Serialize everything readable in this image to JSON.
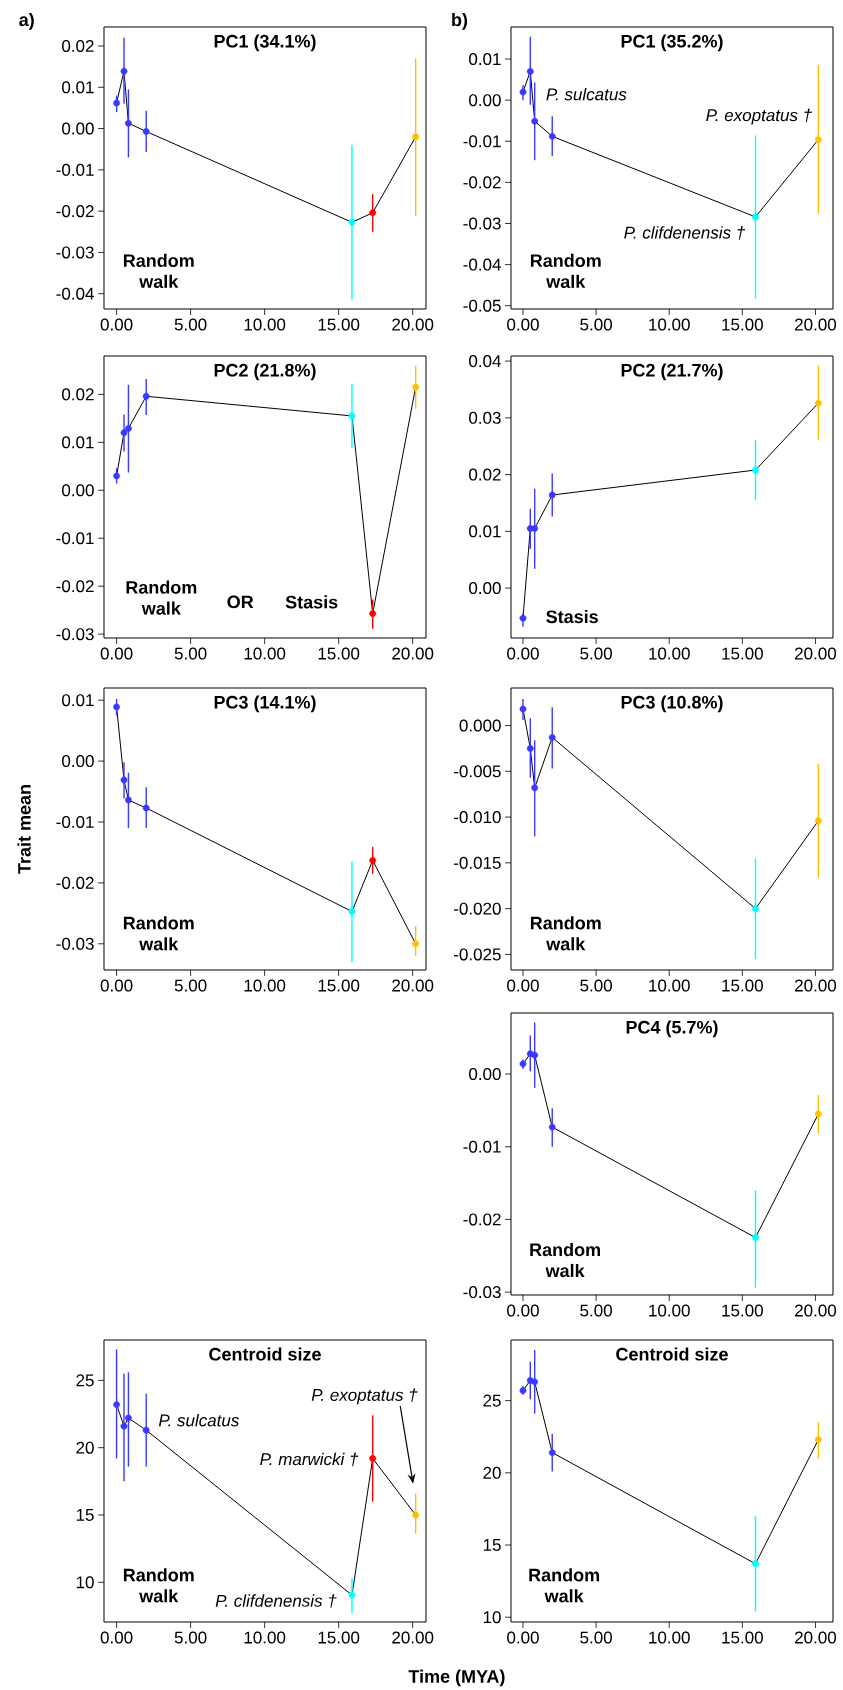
{
  "chart_data": [
    {
      "type": "line",
      "title": "PC1 (34.1%)",
      "x": [
        0,
        0.5,
        0.8,
        2.0,
        15.9,
        17.3,
        20.2
      ],
      "values": [
        0.0062,
        0.0139,
        0.0013,
        -0.0007,
        -0.0227,
        -0.0204,
        -0.002
      ],
      "errors": [
        [
          0.004,
          0.008
        ],
        [
          0.006,
          0.022
        ],
        [
          -0.007,
          0.0095
        ],
        [
          -0.0057,
          0.0043
        ],
        [
          -0.0414,
          -0.0039
        ],
        [
          -0.025,
          -0.0159
        ],
        [
          -0.0212,
          0.017
        ]
      ],
      "color": "#000000",
      "colors": [
        "#3a3aff",
        "#3a3aff",
        "#3a3aff",
        "#3a3aff",
        "#00ffff",
        "#ff0000",
        "#ffc000"
      ],
      "marker": "circle",
      "xlim": [
        -0.85,
        20.9
      ],
      "ylim": [
        -0.0437,
        0.0246
      ],
      "xticks": [
        {
          "value": 0,
          "label": "0.00"
        },
        {
          "value": 5,
          "label": "5.00"
        },
        {
          "value": 10,
          "label": "10.00"
        },
        {
          "value": 15,
          "label": "15.00"
        },
        {
          "value": 20,
          "label": "20.00"
        }
      ],
      "yticks": [
        -0.04,
        -0.03,
        -0.02,
        -0.01,
        {
          "value": 0,
          "label": "0.00"
        },
        0.01,
        0.02
      ],
      "annotations": [
        "a)",
        "Random walk"
      ]
    },
    {
      "type": "line",
      "title": "PC1 (35.2%)",
      "x": [
        0,
        0.5,
        0.8,
        2.0,
        15.9,
        20.2
      ],
      "values": [
        0.002,
        0.007,
        -0.0051,
        -0.0088,
        -0.0284,
        -0.0096
      ],
      "errors": [
        [
          0.0,
          0.0037
        ],
        [
          -0.0011,
          0.0154
        ],
        [
          -0.0146,
          0.0043
        ],
        [
          -0.0136,
          -0.0039
        ],
        [
          -0.0483,
          -0.0086
        ],
        [
          -0.0277,
          0.0085
        ]
      ],
      "color": "#000000",
      "colors": [
        "#3a3aff",
        "#3a3aff",
        "#3a3aff",
        "#3a3aff",
        "#00ffff",
        "#ffc000"
      ],
      "marker": "circle",
      "xlim": [
        -0.82,
        21.2
      ],
      "ylim": [
        -0.0508,
        0.0178
      ],
      "xticks": [
        {
          "value": 0,
          "label": "0.00"
        },
        {
          "value": 5,
          "label": "5.00"
        },
        {
          "value": 10,
          "label": "10.00"
        },
        {
          "value": 15,
          "label": "15.00"
        },
        {
          "value": 20,
          "label": "20.00"
        }
      ],
      "yticks": [
        -0.05,
        -0.04,
        -0.03,
        -0.02,
        -0.01,
        {
          "value": 0,
          "label": "0.00"
        },
        0.01
      ],
      "annotations": [
        "b)",
        {
          "text": "P. sulcatus",
          "x": 0.8,
          "y": -0.0051
        },
        {
          "text": "P. exoptatus †",
          "x": 20.2,
          "y": -0.0096
        },
        {
          "text": "P. clifdenensis †",
          "x": 15.9,
          "y": -0.0284
        },
        "Random walk"
      ]
    },
    {
      "type": "line",
      "title": "PC2 (21.8%)",
      "x": [
        0,
        0.5,
        0.8,
        2.0,
        15.9,
        17.3,
        20.2
      ],
      "values": [
        0.003,
        0.012,
        0.0129,
        0.0196,
        0.0155,
        -0.0257,
        0.0215
      ],
      "errors": [
        [
          0.0014,
          0.0046
        ],
        [
          0.0081,
          0.0158
        ],
        [
          0.0037,
          0.022
        ],
        [
          0.0157,
          0.0232
        ],
        [
          0.0088,
          0.0222
        ],
        [
          -0.0289,
          -0.0228
        ],
        [
          0.017,
          0.026
        ]
      ],
      "color": "#000000",
      "colors": [
        "#3a3aff",
        "#3a3aff",
        "#3a3aff",
        "#3a3aff",
        "#00ffff",
        "#ff0000",
        "#ffc000"
      ],
      "marker": "circle",
      "xlim": [
        -0.85,
        20.9
      ],
      "ylim": [
        -0.0308,
        0.028
      ],
      "xticks": [
        {
          "value": 0,
          "label": "0.00"
        },
        {
          "value": 5,
          "label": "5.00"
        },
        {
          "value": 10,
          "label": "10.00"
        },
        {
          "value": 15,
          "label": "15.00"
        },
        {
          "value": 20,
          "label": "20.00"
        }
      ],
      "yticks": [
        -0.03,
        -0.02,
        -0.01,
        {
          "value": 0,
          "label": "0.00"
        },
        0.01,
        0.02
      ],
      "annotations": [
        "Random walk",
        "OR",
        "Stasis"
      ]
    },
    {
      "type": "line",
      "title": "PC2 (21.7%)",
      "x": [
        0,
        0.5,
        0.8,
        2.0,
        15.9,
        20.2
      ],
      "values": [
        -0.0053,
        0.0105,
        0.0105,
        0.0164,
        0.0208,
        0.0326
      ],
      "errors": [
        [
          -0.0068,
          -0.0044
        ],
        [
          0.0069,
          0.014
        ],
        [
          0.0034,
          0.0175
        ],
        [
          0.0126,
          0.0202
        ],
        [
          0.0155,
          0.0261
        ],
        [
          0.0261,
          0.0392
        ]
      ],
      "color": "#000000",
      "colors": [
        "#3a3aff",
        "#3a3aff",
        "#3a3aff",
        "#3a3aff",
        "#00ffff",
        "#ffc000"
      ],
      "marker": "circle",
      "xlim": [
        -0.82,
        21.2
      ],
      "ylim": [
        -0.0088,
        0.0409
      ],
      "xticks": [
        {
          "value": 0,
          "label": "0.00"
        },
        {
          "value": 5,
          "label": "5.00"
        },
        {
          "value": 10,
          "label": "10.00"
        },
        {
          "value": 15,
          "label": "15.00"
        },
        {
          "value": 20,
          "label": "20.00"
        }
      ],
      "yticks": [
        {
          "value": 0,
          "label": "0.00"
        },
        0.01,
        0.02,
        0.03,
        0.04
      ],
      "annotations": [
        "Stasis"
      ]
    },
    {
      "type": "line",
      "title": "PC3 (14.1%)",
      "ylabel": "Trait mean",
      "x": [
        0,
        0.5,
        0.8,
        2.0,
        15.9,
        17.3,
        20.2
      ],
      "values": [
        0.0089,
        -0.0031,
        -0.0064,
        -0.0077,
        -0.0247,
        -0.0163,
        -0.03
      ],
      "errors": [
        [
          0.0075,
          0.0102
        ],
        [
          -0.0061,
          -0.0002
        ],
        [
          -0.011,
          -0.0019
        ],
        [
          -0.011,
          -0.0043
        ],
        [
          -0.033,
          -0.0165
        ],
        [
          -0.0185,
          -0.0141
        ],
        [
          -0.032,
          -0.0271
        ]
      ],
      "color": "#000000",
      "colors": [
        "#3a3aff",
        "#3a3aff",
        "#3a3aff",
        "#3a3aff",
        "#00ffff",
        "#ff0000",
        "#ffc000"
      ],
      "marker": "circle",
      "xlim": [
        -0.85,
        20.9
      ],
      "ylim": [
        -0.0343,
        0.012
      ],
      "xticks": [
        {
          "value": 0,
          "label": "0.00"
        },
        {
          "value": 5,
          "label": "5.00"
        },
        {
          "value": 10,
          "label": "10.00"
        },
        {
          "value": 15,
          "label": "15.00"
        },
        {
          "value": 20,
          "label": "20.00"
        }
      ],
      "yticks": [
        -0.03,
        -0.02,
        -0.01,
        {
          "value": 0,
          "label": "0.00"
        },
        0.01
      ],
      "annotations": [
        "Random walk"
      ]
    },
    {
      "type": "line",
      "title": "PC3 (10.8%)",
      "x": [
        0,
        0.5,
        0.8,
        2.0,
        15.9,
        20.2
      ],
      "values": [
        0.0018,
        -0.0025,
        -0.0068,
        -0.0013,
        -0.02,
        -0.0104
      ],
      "errors": [
        [
          0.0006,
          0.0029
        ],
        [
          -0.0057,
          0.0008
        ],
        [
          -0.0121,
          -0.0016
        ],
        [
          -0.0047,
          0.002
        ],
        [
          -0.0255,
          -0.0145
        ],
        [
          -0.0166,
          -0.0042
        ]
      ],
      "color": "#000000",
      "colors": [
        "#3a3aff",
        "#3a3aff",
        "#3a3aff",
        "#3a3aff",
        "#00ffff",
        "#ffc000"
      ],
      "marker": "circle",
      "xlim": [
        -0.82,
        21.2
      ],
      "ylim": [
        -0.0267,
        0.0041
      ],
      "xticks": [
        {
          "value": 0,
          "label": "0.00"
        },
        {
          "value": 5,
          "label": "5.00"
        },
        {
          "value": 10,
          "label": "10.00"
        },
        {
          "value": 15,
          "label": "15.00"
        },
        {
          "value": 20,
          "label": "20.00"
        }
      ],
      "yticks": [
        {
          "value": -0.025,
          "label": "-0.025"
        },
        {
          "value": -0.02,
          "label": "-0.020"
        },
        {
          "value": -0.015,
          "label": "-0.015"
        },
        {
          "value": -0.01,
          "label": "-0.010"
        },
        {
          "value": -0.005,
          "label": "-0.005"
        },
        {
          "value": 0,
          "label": "0.000"
        }
      ],
      "annotations": [
        "Random walk"
      ]
    },
    {
      "type": "line",
      "title": "PC4 (5.7%)",
      "x": [
        0,
        0.5,
        0.8,
        2.0,
        15.9,
        20.2
      ],
      "values": [
        0.0014,
        0.0028,
        0.0026,
        -0.0073,
        -0.0225,
        -0.0055
      ],
      "errors": [
        [
          0.0007,
          0.002
        ],
        [
          0.0004,
          0.0053
        ],
        [
          -0.0019,
          0.0071
        ],
        [
          -0.01,
          -0.0047
        ],
        [
          -0.0294,
          -0.016
        ],
        [
          -0.0081,
          -0.0029
        ]
      ],
      "color": "#000000",
      "colors": [
        "#3a3aff",
        "#3a3aff",
        "#3a3aff",
        "#3a3aff",
        "#00ffff",
        "#ffc000"
      ],
      "marker": "circle",
      "xlim": [
        -0.82,
        21.2
      ],
      "ylim": [
        -0.0304,
        0.0084
      ],
      "xticks": [
        {
          "value": 0,
          "label": "0.00"
        },
        {
          "value": 5,
          "label": "5.00"
        },
        {
          "value": 10,
          "label": "10.00"
        },
        {
          "value": 15,
          "label": "15.00"
        },
        {
          "value": 20,
          "label": "20.00"
        }
      ],
      "yticks": [
        -0.03,
        -0.02,
        -0.01,
        {
          "value": 0,
          "label": "0.00"
        }
      ],
      "annotations": [
        "Random walk"
      ]
    },
    {
      "type": "line",
      "title": "Centroid size",
      "xlabel": "Time (MYA)",
      "x": [
        0,
        0.5,
        0.8,
        2.0,
        15.9,
        17.3,
        20.2
      ],
      "values": [
        23.2,
        21.6,
        22.2,
        21.3,
        9.05,
        19.2,
        15.0
      ],
      "errors": [
        [
          19.2,
          27.3
        ],
        [
          17.5,
          25.5
        ],
        [
          18.6,
          25.6
        ],
        [
          18.6,
          24.0
        ],
        [
          7.7,
          10.3
        ],
        [
          16.0,
          22.4
        ],
        [
          13.6,
          16.6
        ]
      ],
      "color": "#000000",
      "colors": [
        "#3a3aff",
        "#3a3aff",
        "#3a3aff",
        "#3a3aff",
        "#00ffff",
        "#ff0000",
        "#ffc000"
      ],
      "marker": "circle",
      "xlim": [
        -0.85,
        20.9
      ],
      "ylim": [
        7.05,
        28.0
      ],
      "xticks": [
        {
          "value": 0,
          "label": "0.00"
        },
        {
          "value": 5,
          "label": "5.00"
        },
        {
          "value": 10,
          "label": "10.00"
        },
        {
          "value": 15,
          "label": "15.00"
        },
        {
          "value": 20,
          "label": "20.00"
        }
      ],
      "yticks": [
        10,
        15,
        20,
        25
      ],
      "annotations": [
        "Random walk",
        {
          "text": "P. sulcatus",
          "x": 2.0,
          "y": 21.3
        },
        {
          "text": "P. marwicki †",
          "x": 17.3,
          "y": 19.2
        },
        "P. exoptatus †",
        {
          "text": "P. clifdenensis †",
          "x": 15.9,
          "y": 9.05
        }
      ]
    },
    {
      "type": "line",
      "title": "Centroid size",
      "x": [
        0,
        0.5,
        0.8,
        2.0,
        15.9,
        20.2
      ],
      "values": [
        25.7,
        26.4,
        26.3,
        21.4,
        13.7,
        22.3
      ],
      "errors": [
        [
          25.4,
          26.0
        ],
        [
          25.1,
          27.7
        ],
        [
          24.1,
          28.5
        ],
        [
          20.1,
          22.7
        ],
        [
          10.4,
          17.0
        ],
        [
          21.0,
          23.5
        ]
      ],
      "color": "#000000",
      "colors": [
        "#3a3aff",
        "#3a3aff",
        "#3a3aff",
        "#3a3aff",
        "#00ffff",
        "#ffc000"
      ],
      "marker": "circle",
      "xlim": [
        -0.82,
        21.2
      ],
      "ylim": [
        9.67,
        29.2
      ],
      "xticks": [
        {
          "value": 0,
          "label": "0.00"
        },
        {
          "value": 5,
          "label": "5.00"
        },
        {
          "value": 10,
          "label": "10.00"
        },
        {
          "value": 15,
          "label": "15.00"
        },
        {
          "value": 20,
          "label": "20.00"
        }
      ],
      "yticks": [
        10,
        15,
        20,
        25
      ],
      "annotations": [
        "Random walk"
      ]
    }
  ]
}
